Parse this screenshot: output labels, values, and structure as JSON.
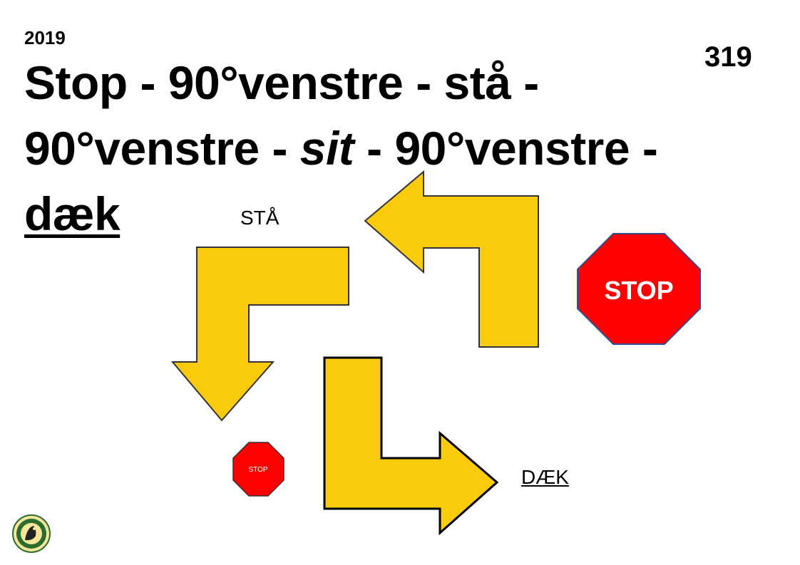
{
  "header": {
    "year": "2019",
    "number": "319"
  },
  "title": {
    "line1": "Stop - 90°venstre - stå -",
    "line2_part1": "90°venstre - ",
    "line2_part2": "sit",
    "line2_part3": " - 90°venstre -",
    "line3": "dæk"
  },
  "labels": {
    "sta": "STÅ",
    "daek": "DÆK",
    "stop_big": "STOP",
    "stop_small": "STOP"
  },
  "colors": {
    "arrow_fill": "#F9CB0A",
    "stop_fill": "#FF0000",
    "logo_green": "#2E6B2E"
  },
  "icons": [
    "left-turn-arrow-icon",
    "down-turn-arrow-icon",
    "right-turn-arrow-icon",
    "stop-sign-icon",
    "club-logo-icon"
  ]
}
